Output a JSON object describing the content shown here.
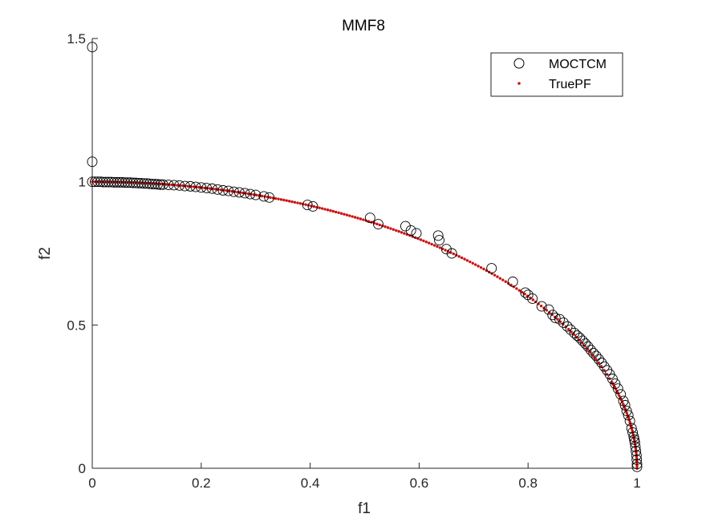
{
  "chart_data": {
    "type": "scatter",
    "title": "MMF8",
    "xlabel": "f1",
    "ylabel": "f2",
    "xlim": [
      0,
      1
    ],
    "ylim": [
      0,
      1.5
    ],
    "xticks": [
      0,
      0.2,
      0.4,
      0.6,
      0.8,
      1
    ],
    "xtick_labels": [
      "0",
      "0.2",
      "0.4",
      "0.6",
      "0.8",
      "1"
    ],
    "yticks": [
      0,
      0.5,
      1,
      1.5
    ],
    "ytick_labels": [
      "0",
      "0.5",
      "1",
      "1.5"
    ],
    "grid": false,
    "legend_position": "top-right",
    "colors": {
      "moctcm": "#000000",
      "truepf": "#cc1111"
    },
    "series": [
      {
        "name": "MOCTCM",
        "marker": "open-circle",
        "points": [
          [
            0.0,
            1.47
          ],
          [
            0.0,
            1.07
          ],
          [
            0.0,
            1.0
          ],
          [
            0.005,
            1.0
          ],
          [
            0.01,
            1.0
          ],
          [
            0.015,
            1.0
          ],
          [
            0.02,
            0.999
          ],
          [
            0.025,
            0.999
          ],
          [
            0.03,
            0.999
          ],
          [
            0.035,
            0.999
          ],
          [
            0.04,
            0.998
          ],
          [
            0.045,
            0.998
          ],
          [
            0.05,
            0.998
          ],
          [
            0.055,
            0.998
          ],
          [
            0.06,
            0.997
          ],
          [
            0.065,
            0.997
          ],
          [
            0.07,
            0.997
          ],
          [
            0.075,
            0.996
          ],
          [
            0.08,
            0.996
          ],
          [
            0.085,
            0.995
          ],
          [
            0.09,
            0.995
          ],
          [
            0.095,
            0.994
          ],
          [
            0.1,
            0.994
          ],
          [
            0.105,
            0.993
          ],
          [
            0.11,
            0.992
          ],
          [
            0.115,
            0.992
          ],
          [
            0.12,
            0.991
          ],
          [
            0.125,
            0.99
          ],
          [
            0.13,
            0.99
          ],
          [
            0.14,
            0.989
          ],
          [
            0.15,
            0.988
          ],
          [
            0.16,
            0.987
          ],
          [
            0.17,
            0.985
          ],
          [
            0.18,
            0.984
          ],
          [
            0.19,
            0.982
          ],
          [
            0.2,
            0.98
          ],
          [
            0.21,
            0.978
          ],
          [
            0.22,
            0.976
          ],
          [
            0.23,
            0.973
          ],
          [
            0.24,
            0.97
          ],
          [
            0.25,
            0.968
          ],
          [
            0.26,
            0.965
          ],
          [
            0.27,
            0.963
          ],
          [
            0.28,
            0.96
          ],
          [
            0.29,
            0.957
          ],
          [
            0.3,
            0.954
          ],
          [
            0.315,
            0.949
          ],
          [
            0.325,
            0.945
          ],
          [
            0.395,
            0.919
          ],
          [
            0.405,
            0.914
          ],
          [
            0.51,
            0.874
          ],
          [
            0.525,
            0.852
          ],
          [
            0.575,
            0.845
          ],
          [
            0.585,
            0.83
          ],
          [
            0.595,
            0.82
          ],
          [
            0.635,
            0.812
          ],
          [
            0.637,
            0.796
          ],
          [
            0.65,
            0.765
          ],
          [
            0.66,
            0.75
          ],
          [
            0.733,
            0.698
          ],
          [
            0.772,
            0.651
          ],
          [
            0.795,
            0.613
          ],
          [
            0.8,
            0.605
          ],
          [
            0.808,
            0.592
          ],
          [
            0.825,
            0.565
          ],
          [
            0.838,
            0.554
          ],
          [
            0.845,
            0.535
          ],
          [
            0.85,
            0.525
          ],
          [
            0.858,
            0.52
          ],
          [
            0.865,
            0.508
          ],
          [
            0.872,
            0.495
          ],
          [
            0.878,
            0.484
          ],
          [
            0.885,
            0.472
          ],
          [
            0.89,
            0.463
          ],
          [
            0.895,
            0.455
          ],
          [
            0.9,
            0.445
          ],
          [
            0.905,
            0.435
          ],
          [
            0.91,
            0.425
          ],
          [
            0.915,
            0.413
          ],
          [
            0.92,
            0.402
          ],
          [
            0.925,
            0.392
          ],
          [
            0.93,
            0.38
          ],
          [
            0.935,
            0.368
          ],
          [
            0.94,
            0.355
          ],
          [
            0.945,
            0.342
          ],
          [
            0.95,
            0.328
          ],
          [
            0.955,
            0.312
          ],
          [
            0.96,
            0.295
          ],
          [
            0.965,
            0.278
          ],
          [
            0.97,
            0.258
          ],
          [
            0.975,
            0.235
          ],
          [
            0.978,
            0.22
          ],
          [
            0.981,
            0.2
          ],
          [
            0.984,
            0.185
          ],
          [
            0.987,
            0.165
          ],
          [
            0.99,
            0.14
          ],
          [
            0.992,
            0.125
          ],
          [
            0.994,
            0.11
          ],
          [
            0.995,
            0.1
          ],
          [
            0.996,
            0.09
          ],
          [
            0.997,
            0.075
          ],
          [
            0.998,
            0.06
          ],
          [
            0.999,
            0.045
          ],
          [
            0.9995,
            0.03
          ],
          [
            1.0,
            0.015
          ],
          [
            1.0,
            0.005
          ]
        ]
      },
      {
        "name": "TruePF",
        "marker": "dot",
        "curve": "f2 = sqrt(1 - f1^2)",
        "x_range": [
          0,
          1
        ],
        "points_count": 200
      }
    ]
  }
}
